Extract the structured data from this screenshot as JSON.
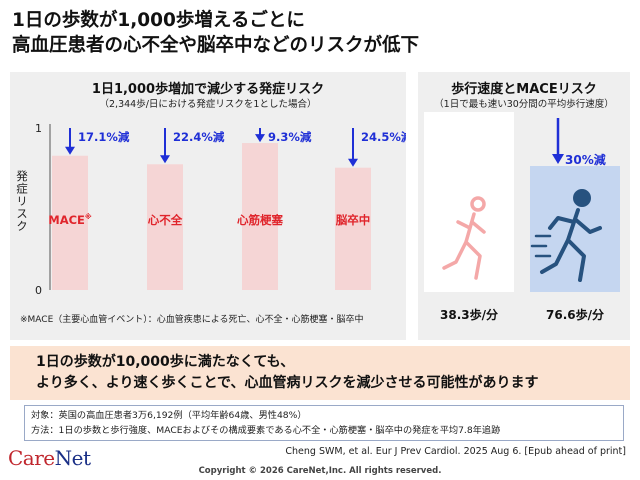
{
  "title": {
    "line1": "1日の歩数が1,000歩増えるごとに",
    "line2": "高血圧患者の心不全や脳卒中などのリスクが低下"
  },
  "left_panel": {
    "title": "1日1,000歩増加で減少する発症リスク",
    "subtitle": "（2,344歩/日における発症リスクを1とした場合）",
    "ylabel": "発症リスク",
    "footnote": "※MACE（主要心血管イベント）：心血管疾患による死亡、心不全・心筋梗塞・脳卒中"
  },
  "right_panel": {
    "title": "歩行速度とMACEリスク",
    "subtitle": "（1日で最も速い30分間の平均歩行速度）",
    "speeds": [
      "38.3歩/分",
      "76.6歩/分"
    ],
    "reduction_label": "30%減",
    "icons": [
      "walking-person-icon",
      "fast-walking-person-icon"
    ]
  },
  "chart_data": [
    {
      "type": "bar",
      "title": "1日1,000歩増加で減少する発症リスク",
      "subtitle": "（2,344歩/日における発症リスクを1とした場合）",
      "ylabel": "発症リスク",
      "xlabel": "",
      "ylim": [
        0,
        1
      ],
      "yticks": [
        "0",
        "1"
      ],
      "categories": [
        "MACE※",
        "心不全",
        "心筋梗塞",
        "脳卒中"
      ],
      "values": [
        0.829,
        0.776,
        0.907,
        0.755
      ],
      "annotations": [
        "17.1%減",
        "22.4%減",
        "9.3%減",
        "24.5%減"
      ],
      "grid": false,
      "legend": "none",
      "colors": {
        "bar": "#f5d5d5",
        "category_text": "#e0242b",
        "annotation_text": "#1f2fd6",
        "arrow": "#1f2fd6"
      }
    },
    {
      "type": "bar",
      "title": "歩行速度とMACEリスク",
      "subtitle": "（1日で最も速い30分間の平均歩行速度）",
      "xlabel": "",
      "ylabel": "",
      "categories": [
        "38.3歩/分",
        "76.6歩/分"
      ],
      "values": [
        1,
        0.7
      ],
      "annotations": [
        "",
        "30%減"
      ],
      "grid": false,
      "legend": "none",
      "colors": {
        "slow": "#ffffff",
        "fast": "#c5d6f0",
        "slow_icon": "#f4a8a8",
        "fast_icon": "#27527f"
      }
    }
  ],
  "conclusion": {
    "line1": "1日の歩数が10,000歩に満たなくても、",
    "line2": "より多く、より速く歩くことで、心血管病リスクを減少させる可能性があります"
  },
  "methods": {
    "subjects": "対象：英国の高血圧患者3万6,192例（平均年齢64歳、男性48%）",
    "method": "方法：1日の歩数と歩行強度、MACEおよびその構成要素である心不全・心筋梗塞・脳卒中の発症を平均7.8年追跡"
  },
  "citation": "Cheng SWM, et al. Eur J Prev Cardiol. 2025 Aug 6. [Epub ahead of print]",
  "logo": {
    "part1": "Care",
    "part2": "Net"
  },
  "copyright": "Copyright © 2026 CareNet,Inc. All rights reserved."
}
